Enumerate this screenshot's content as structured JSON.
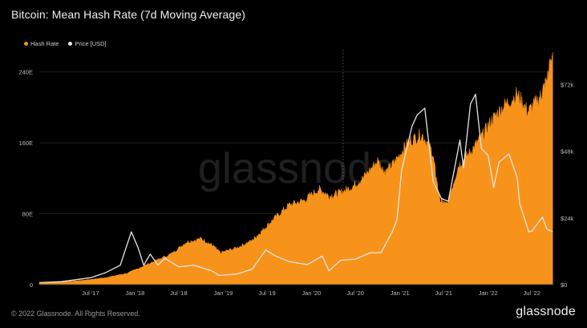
{
  "header": {
    "title": "Bitcoin: Mean Hash Rate (7d Moving Average)"
  },
  "footer": {
    "copyright": "© 2022 Glassnode. All Rights Reserved.",
    "brand": "glassnode"
  },
  "watermark": "glassnode",
  "colors": {
    "hash_rate": "#F7931A",
    "price": "#E6E6E6",
    "background": "#000000"
  },
  "chart_data": {
    "type": "area",
    "title": "Bitcoin: Mean Hash Rate (7d Moving Average)",
    "xlabel": "",
    "ylabel": "",
    "grid": true,
    "legend_placement": "top-left",
    "x_ticks": [
      "Jul '17",
      "Jan '18",
      "Jul '18",
      "Jan '19",
      "Jul '19",
      "Jan '20",
      "Jul '20",
      "Jan '21",
      "Jul '21",
      "Jan '22",
      "Jul '22"
    ],
    "x_range": [
      "2016-12-01",
      "2022-10-01"
    ],
    "y_left": {
      "label": "Hash Rate",
      "ticks": [
        "0",
        "80E",
        "160E",
        "240E"
      ],
      "tick_values": [
        0,
        80,
        160,
        240
      ],
      "range": [
        0,
        265
      ]
    },
    "y_right": {
      "label": "Price [USD]",
      "ticks": [
        "$0",
        "$24k",
        "$48k",
        "$72k"
      ],
      "tick_values": [
        0,
        24000,
        48000,
        72000
      ],
      "range": [
        0,
        84500
      ]
    },
    "series": [
      {
        "name": "Hash Rate",
        "axis": "left",
        "style": "area",
        "x": [
          "2016-12-01",
          "2017-03-01",
          "2017-06-01",
          "2017-09-01",
          "2017-12-01",
          "2018-03-01",
          "2018-06-01",
          "2018-08-01",
          "2018-10-01",
          "2018-11-20",
          "2018-12-20",
          "2019-03-01",
          "2019-05-01",
          "2019-06-15",
          "2019-08-01",
          "2019-10-01",
          "2019-12-01",
          "2020-02-01",
          "2020-03-15",
          "2020-05-01",
          "2020-06-15",
          "2020-08-01",
          "2020-10-01",
          "2020-11-01",
          "2020-12-15",
          "2021-02-01",
          "2021-04-01",
          "2021-05-15",
          "2021-06-15",
          "2021-07-15",
          "2021-09-01",
          "2021-10-15",
          "2021-12-01",
          "2022-01-15",
          "2022-03-01",
          "2022-05-01",
          "2022-06-15",
          "2022-08-01",
          "2022-09-01",
          "2022-09-25"
        ],
        "values": [
          2,
          3,
          5,
          8,
          13,
          24,
          35,
          48,
          52,
          44,
          36,
          42,
          50,
          62,
          75,
          90,
          95,
          108,
          100,
          104,
          110,
          120,
          140,
          126,
          140,
          160,
          170,
          150,
          95,
          90,
          135,
          148,
          165,
          185,
          200,
          215,
          195,
          210,
          230,
          262
        ]
      },
      {
        "name": "Price [USD]",
        "axis": "right",
        "style": "line",
        "x": [
          "2016-12-01",
          "2017-03-01",
          "2017-05-01",
          "2017-07-01",
          "2017-09-01",
          "2017-11-01",
          "2017-12-17",
          "2018-01-15",
          "2018-02-06",
          "2018-03-05",
          "2018-04-06",
          "2018-05-05",
          "2018-07-01",
          "2018-09-01",
          "2018-11-15",
          "2018-12-15",
          "2019-03-01",
          "2019-05-01",
          "2019-06-26",
          "2019-08-01",
          "2019-10-01",
          "2019-12-15",
          "2020-02-15",
          "2020-03-13",
          "2020-05-01",
          "2020-07-01",
          "2020-09-01",
          "2020-10-15",
          "2020-11-30",
          "2020-12-20",
          "2021-01-08",
          "2021-02-20",
          "2021-03-13",
          "2021-04-14",
          "2021-05-19",
          "2021-06-22",
          "2021-07-20",
          "2021-09-06",
          "2021-09-21",
          "2021-10-20",
          "2021-11-10",
          "2021-12-04",
          "2022-01-01",
          "2022-01-24",
          "2022-02-15",
          "2022-03-28",
          "2022-05-01",
          "2022-05-12",
          "2022-06-18",
          "2022-07-01",
          "2022-08-14",
          "2022-09-01",
          "2022-09-25"
        ],
        "values": [
          750,
          1100,
          1800,
          2500,
          4300,
          7000,
          19000,
          13000,
          7000,
          11000,
          7000,
          9500,
          6400,
          7000,
          5000,
          3300,
          3900,
          5600,
          12500,
          10500,
          8300,
          7200,
          10300,
          5000,
          8800,
          9200,
          11500,
          11500,
          19000,
          23500,
          41000,
          57000,
          61000,
          63500,
          37000,
          31000,
          30000,
          52000,
          42000,
          65000,
          68500,
          49000,
          46500,
          35000,
          44000,
          47000,
          38500,
          29000,
          19000,
          19300,
          24300,
          20000,
          19000
        ]
      }
    ]
  }
}
